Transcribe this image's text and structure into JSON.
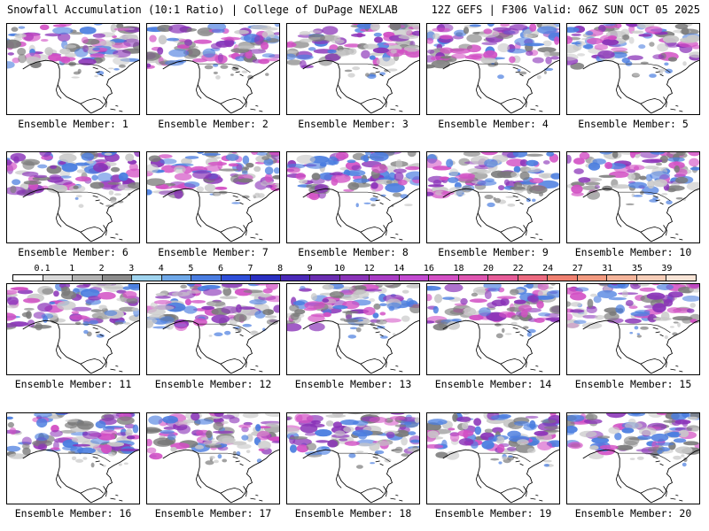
{
  "header": {
    "title_left": "Snowfall Accumulation (10:1 Ratio) | College of DuPage NEXLAB",
    "title_right": "12Z GEFS | F306 Valid: 06Z SUN OCT 05 2025"
  },
  "panels": [
    {
      "label": "Ensemble Member: 1"
    },
    {
      "label": "Ensemble Member: 2"
    },
    {
      "label": "Ensemble Member: 3"
    },
    {
      "label": "Ensemble Member: 4"
    },
    {
      "label": "Ensemble Member: 5"
    },
    {
      "label": "Ensemble Member: 6"
    },
    {
      "label": "Ensemble Member: 7"
    },
    {
      "label": "Ensemble Member: 8"
    },
    {
      "label": "Ensemble Member: 9"
    },
    {
      "label": "Ensemble Member: 10"
    },
    {
      "label": "Ensemble Member: 11"
    },
    {
      "label": "Ensemble Member: 12"
    },
    {
      "label": "Ensemble Member: 13"
    },
    {
      "label": "Ensemble Member: 14"
    },
    {
      "label": "Ensemble Member: 15"
    },
    {
      "label": "Ensemble Member: 16"
    },
    {
      "label": "Ensemble Member: 17"
    },
    {
      "label": "Ensemble Member: 18"
    },
    {
      "label": "Ensemble Member: 19"
    },
    {
      "label": "Ensemble Member: 20"
    }
  ],
  "colorbar": {
    "ticks": [
      "0.1",
      "1",
      "2",
      "3",
      "4",
      "5",
      "6",
      "7",
      "8",
      "9",
      "10",
      "12",
      "14",
      "16",
      "18",
      "20",
      "22",
      "24",
      "27",
      "31",
      "35",
      "39"
    ],
    "colors": [
      "#ffffff",
      "#d9d9d9",
      "#b3b3b3",
      "#8c8c8c",
      "#9fd3ee",
      "#6fa8e8",
      "#4a7de0",
      "#2f4fd8",
      "#2a2fc0",
      "#4b2ab8",
      "#6a2db0",
      "#8a33b8",
      "#a83cc4",
      "#c24ad0",
      "#d24fc4",
      "#de55b0",
      "#e65c98",
      "#ec6a80",
      "#ef8070",
      "#f29a80",
      "#f4b49a",
      "#f6cdb8",
      "#f8e4d6"
    ]
  },
  "colors": {
    "snow_light": "#c8c8c8",
    "snow_mid": "#7a7a7a",
    "snow_blue": "#4a7de0",
    "snow_purple": "#8a33b8",
    "snow_pink": "#d24fc4",
    "border": "#000000"
  }
}
